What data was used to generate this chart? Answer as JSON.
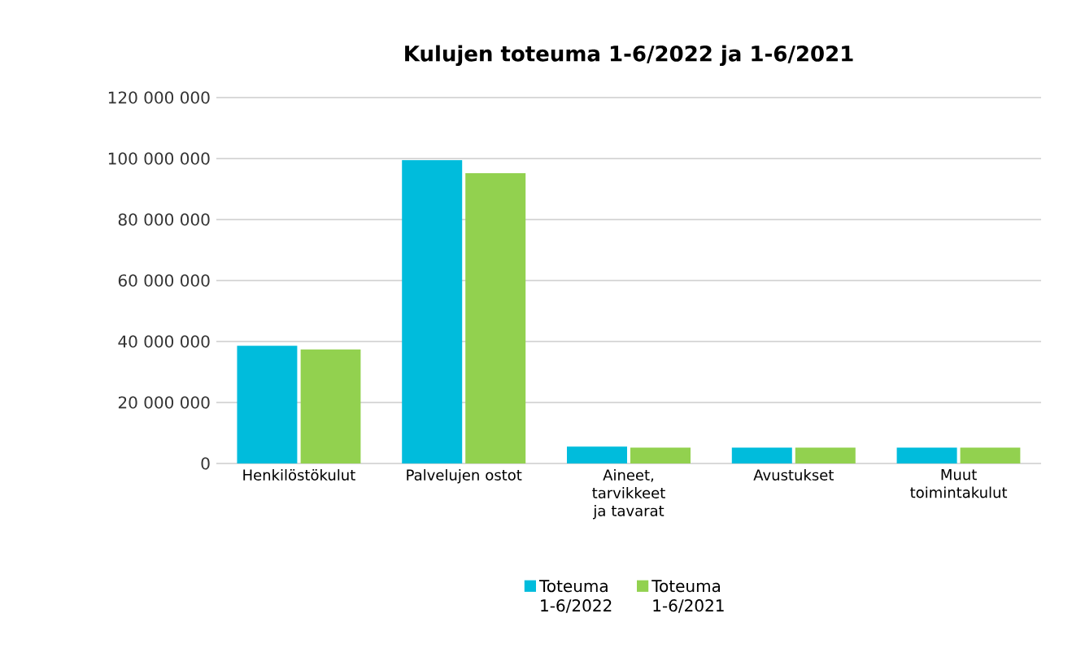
{
  "chart_data": {
    "type": "bar",
    "title": "Kulujen toteuma 1-6/2022 ja 1-6/2021",
    "categories": [
      "Henkilöstökulut",
      "Palvelujen ostot",
      "Aineet, tarvikkeet ja tavarat",
      "Avustukset",
      "Muut toimintakulut"
    ],
    "series": [
      {
        "name": "Toteuma 1-6/2022",
        "color": "#00bcdc",
        "values": [
          38600000,
          99500000,
          5500000,
          5200000,
          5200000
        ]
      },
      {
        "name": "Toteuma 1-6/2021",
        "color": "#92d14f",
        "values": [
          37400000,
          95200000,
          5200000,
          5200000,
          5200000
        ]
      }
    ],
    "ylim": [
      0,
      120000000
    ],
    "yticks": [
      {
        "value": 0,
        "label": "0"
      },
      {
        "value": 20000000,
        "label": "20 000 000"
      },
      {
        "value": 40000000,
        "label": "40 000 000"
      },
      {
        "value": 60000000,
        "label": "60 000 000"
      },
      {
        "value": 80000000,
        "label": "80 000 000"
      },
      {
        "value": 100000000,
        "label": "100 000 000"
      },
      {
        "value": 120000000,
        "label": "120 000 000"
      }
    ],
    "grid": "y",
    "legend": "bottom"
  }
}
